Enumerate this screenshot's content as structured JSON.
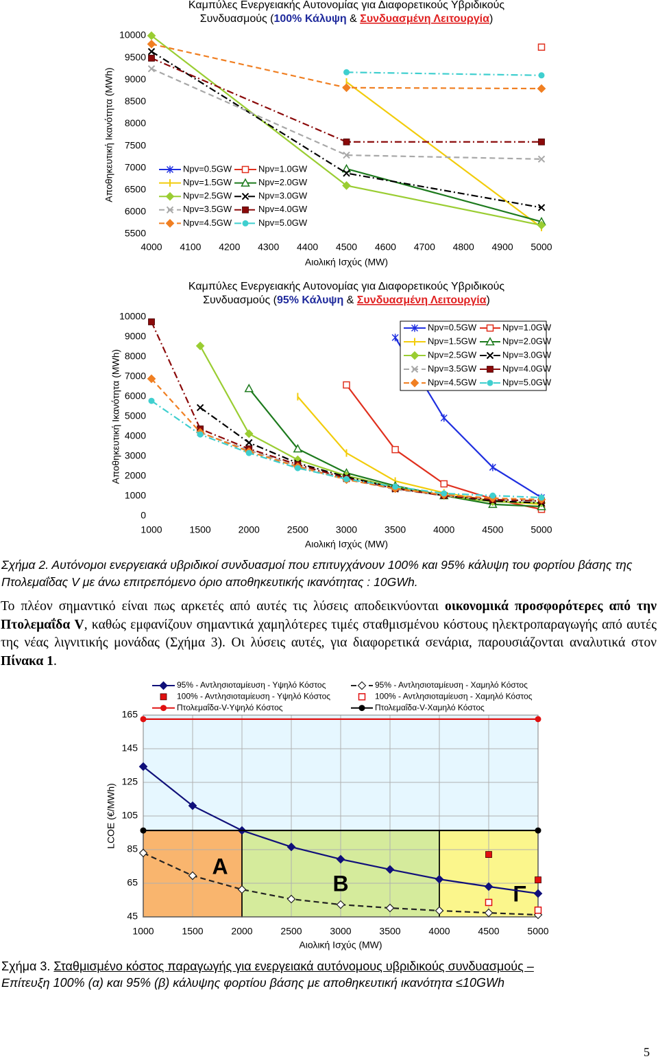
{
  "chart_data": [
    {
      "type": "line",
      "title": "Καμπύλες Ενεργειακής Αυτονομίας για Διαφορετικούς Υβριδικούς",
      "subtitle_parts": [
        "Συνδυασμούς (",
        "100% Κάλυψη",
        " & ",
        "Συνδυασμένη Λειτουργία",
        ")"
      ],
      "x_label": "Αιολική Ισχύς (MW)",
      "y_label": "Αποθηκευτική Ικανότητα (MWh)",
      "x": [
        4000,
        4500,
        5000
      ],
      "xlim": [
        4000,
        5000
      ],
      "xticks": [
        4000,
        4100,
        4200,
        4300,
        4400,
        4500,
        4600,
        4700,
        4800,
        4900,
        5000
      ],
      "ylim": [
        5500,
        10000
      ],
      "yticks": [
        5500,
        6000,
        6500,
        7000,
        7500,
        8000,
        8500,
        9000,
        9500,
        10000
      ],
      "grid": false,
      "legend": "lower left",
      "series": [
        {
          "name": "Npv=0.5GW",
          "color": "#1f2fe0",
          "marker": "asterisk",
          "line_style": "solid",
          "values": [
            null,
            null,
            null
          ]
        },
        {
          "name": "Npv=1.0GW",
          "color": "#e0301e",
          "marker": "square-open",
          "line_style": "solid",
          "values": [
            null,
            null,
            9740
          ]
        },
        {
          "name": "Npv=1.5GW",
          "color": "#f2cc0c",
          "marker": "bar",
          "line_style": "solid",
          "values": [
            null,
            8950,
            5650
          ]
        },
        {
          "name": "Npv=2.0GW",
          "color": "#1d7a1d",
          "marker": "triangle-open",
          "line_style": "solid",
          "values": [
            null,
            6980,
            5780
          ]
        },
        {
          "name": "Npv=2.5GW",
          "color": "#9acd32",
          "marker": "diamond",
          "line_style": "solid",
          "values": [
            10000,
            6600,
            5700
          ]
        },
        {
          "name": "Npv=3.0GW",
          "color": "#000000",
          "marker": "x",
          "line_style": "dashdot",
          "values": [
            9640,
            6880,
            6100
          ]
        },
        {
          "name": "Npv=3.5GW",
          "color": "#a8a8a8",
          "marker": "x",
          "line_style": "dash",
          "values": [
            9250,
            7290,
            7200
          ]
        },
        {
          "name": "Npv=4.0GW",
          "color": "#8b0a0a",
          "marker": "square",
          "line_style": "dashdot",
          "values": [
            9490,
            7590,
            7590
          ]
        },
        {
          "name": "Npv=4.5GW",
          "color": "#f07f22",
          "marker": "diamond",
          "line_style": "dash",
          "values": [
            9810,
            8820,
            8800
          ]
        },
        {
          "name": "Npv=5.0GW",
          "color": "#3fcfcf",
          "marker": "circle",
          "line_style": "dashdot",
          "values": [
            null,
            9170,
            9100
          ]
        }
      ]
    },
    {
      "type": "line",
      "title": "Καμπύλες Ενεργειακής Αυτονομίας για Διαφορετικούς Υβριδικούς",
      "subtitle_parts": [
        "Συνδυασμούς (",
        "95% Κάλυψη",
        " & ",
        "Συνδυασμένη Λειτουργία",
        ")"
      ],
      "x_label": "Αιολική Ισχύς (MW)",
      "y_label": "Αποθηκευτική Ικανότητα (MWh)",
      "x": [
        1000,
        1500,
        2000,
        2500,
        3000,
        3500,
        4000,
        4500,
        5000
      ],
      "xlim": [
        1000,
        5000
      ],
      "xticks": [
        1000,
        1500,
        2000,
        2500,
        3000,
        3500,
        4000,
        4500,
        5000
      ],
      "ylim": [
        0,
        10000
      ],
      "yticks": [
        0,
        1000,
        2000,
        3000,
        4000,
        5000,
        6000,
        7000,
        8000,
        9000,
        10000
      ],
      "grid": false,
      "legend": "upper right",
      "series": [
        {
          "name": "Npv=0.5GW",
          "color": "#1f2fe0",
          "marker": "asterisk",
          "line_style": "solid",
          "values": [
            null,
            null,
            null,
            null,
            null,
            8970,
            4930,
            2450,
            930
          ]
        },
        {
          "name": "Npv=1.0GW",
          "color": "#e0301e",
          "marker": "square-open",
          "line_style": "solid",
          "values": [
            null,
            null,
            null,
            null,
            6590,
            3340,
            1620,
            860,
            340
          ]
        },
        {
          "name": "Npv=1.5GW",
          "color": "#f2cc0c",
          "marker": "bar",
          "line_style": "solid",
          "values": [
            null,
            null,
            null,
            6000,
            3170,
            1760,
            1170,
            760,
            590
          ]
        },
        {
          "name": "Npv=2.0GW",
          "color": "#1d7a1d",
          "marker": "triangle-open",
          "line_style": "solid",
          "values": [
            null,
            null,
            6410,
            3380,
            2170,
            1520,
            1030,
            590,
            480
          ]
        },
        {
          "name": "Npv=2.5GW",
          "color": "#9acd32",
          "marker": "diamond",
          "line_style": "solid",
          "values": [
            null,
            8550,
            4140,
            2830,
            2030,
            1450,
            1030,
            720,
            660
          ]
        },
        {
          "name": "Npv=3.0GW",
          "color": "#000000",
          "marker": "x",
          "line_style": "dashdot",
          "values": [
            null,
            5450,
            3690,
            2660,
            1970,
            1410,
            1030,
            760,
            660
          ]
        },
        {
          "name": "Npv=3.5GW",
          "color": "#a8a8a8",
          "marker": "x",
          "line_style": "dash",
          "values": [
            null,
            4200,
            3310,
            2520,
            1860,
            1340,
            1030,
            830,
            760
          ]
        },
        {
          "name": "Npv=4.0GW",
          "color": "#8b0a0a",
          "marker": "square",
          "line_style": "dashdot",
          "values": [
            9760,
            4380,
            3380,
            2590,
            1900,
            1380,
            1030,
            830,
            760
          ]
        },
        {
          "name": "Npv=4.5GW",
          "color": "#f07f22",
          "marker": "diamond",
          "line_style": "dash",
          "values": [
            6900,
            4210,
            3240,
            2480,
            1830,
            1380,
            1070,
            900,
            830
          ]
        },
        {
          "name": "Npv=5.0GW",
          "color": "#3fcfcf",
          "marker": "circle",
          "line_style": "dashdot",
          "values": [
            5790,
            4100,
            3170,
            2410,
            1860,
            1480,
            1140,
            1030,
            930
          ]
        }
      ]
    },
    {
      "type": "line",
      "x_label": "Αιολική Ισχύς (MW)",
      "y_label": "LCOE (€/MWh)",
      "x": [
        1000,
        1500,
        2000,
        2500,
        3000,
        3500,
        4000,
        4500,
        5000
      ],
      "xlim": [
        1000,
        5000
      ],
      "xticks": [
        1000,
        1500,
        2000,
        2500,
        3000,
        3500,
        4000,
        4500,
        5000
      ],
      "ylim": [
        45,
        165
      ],
      "yticks": [
        45,
        65,
        85,
        105,
        125,
        145,
        165
      ],
      "grid": true,
      "legend": "top",
      "background": "#e6f7ff",
      "regions": [
        {
          "label": "Α",
          "x": [
            1000,
            2000
          ],
          "color": "#f9b56e"
        },
        {
          "label": "Β",
          "x": [
            2000,
            4000
          ],
          "color": "#d5eb9c"
        },
        {
          "label": "Γ",
          "x": [
            4000,
            5000
          ],
          "color": "#fbf68c"
        }
      ],
      "series": [
        {
          "name": "95% - Αντλησιοταμίευση - Υψηλό Κόστος",
          "color": "#10107a",
          "marker": "diamond",
          "line_style": "solid",
          "values": [
            134.4,
            111.1,
            96.4,
            86.6,
            79.3,
            73.2,
            67.4,
            63.0,
            58.9
          ]
        },
        {
          "name": "95% - Αντλησιοταμίευση - Χαμηλό Κόστος",
          "color": "#222222",
          "marker": "diamond-open",
          "line_style": "dash",
          "values": [
            83.0,
            69.5,
            61.3,
            55.6,
            52.3,
            50.3,
            48.7,
            47.4,
            46.2
          ]
        },
        {
          "name": "100% - Αντλησιοταμίευση - Υψηλό Κόστος",
          "color": "#e01010",
          "marker": "square",
          "line_style": "none",
          "values": [
            null,
            null,
            null,
            null,
            null,
            null,
            null,
            82.1,
            67.0
          ]
        },
        {
          "name": "100% - Αντλησιοταμίευση - Χαμηλό Κόστος",
          "color": "#e01010",
          "marker": "square-open",
          "line_style": "none",
          "values": [
            null,
            null,
            null,
            null,
            null,
            null,
            null,
            53.6,
            49.0
          ]
        },
        {
          "name": "Πτολεμαΐδα-V-Υψηλό Κόστος",
          "color": "#e01010",
          "marker": "circle",
          "line_style": "solid",
          "x": [
            1000,
            5000
          ],
          "values": [
            162.6,
            162.6
          ]
        },
        {
          "name": "Πτολεμαΐδα-V-Χαμηλό Κόστος",
          "color": "#000000",
          "marker": "circle",
          "line_style": "solid",
          "x": [
            1000,
            5000
          ],
          "values": [
            96.4,
            96.4
          ]
        }
      ]
    }
  ],
  "caption_2": "Σχήμα 2. Αυτόνομοι ενεργειακά υβριδικοί συνδυασμοί που επιτυγχάνουν 100% και 95% κάλυψη του φορτίου βάσης της Πτολεμαΐδας V με άνω επιτρεπόμενο όριο αποθηκευτικής ικανότητας : 10GWh.",
  "paragraph": [
    "Το πλέον σημαντικό είναι πως αρκετές από αυτές τις λύσεις αποδεικνύονται ",
    "οικονομικά προσφορότερες από την Πτολεμαΐδα V",
    ", καθώς εμφανίζουν σημαντικά χαμηλότερες τιμές σταθμισμένου κόστους ηλεκτροπαραγωγής από αυτές της νέας λιγνιτικής μονάδας (Σχήμα 3). Οι λύσεις αυτές, για διαφορετικά σενάρια, παρουσιάζονται αναλυτικά στον ",
    "Πίνακα 1",
    "."
  ],
  "caption_3": [
    "Σχήμα 3.",
    "Σταθμισμένο κόστος παραγωγής για ενεργειακά αυτόνομους υβριδικούς συνδυασμούς –",
    "Επίτευξη 100% (α) και 95% (β) κάλυψης φορτίου βάσης με αποθηκευτική ικανότητα ≤10GWh"
  ],
  "page_number": "5"
}
